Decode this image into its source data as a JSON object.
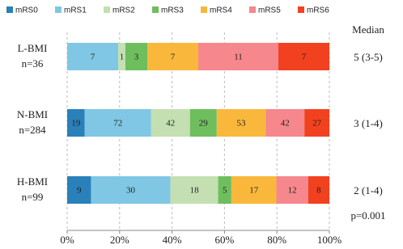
{
  "chart_data": {
    "type": "stacked_percent_barh",
    "categories": [
      "L-BMI",
      "N-BMI",
      "H-BMI"
    ],
    "category_sublabels": [
      "n=36",
      "n=284",
      "n=99"
    ],
    "series": [
      {
        "name": "mRS0",
        "color": "#2a80b9",
        "values": [
          0,
          19,
          9
        ]
      },
      {
        "name": "mRS1",
        "color": "#7fc7e4",
        "values": [
          7,
          72,
          30
        ]
      },
      {
        "name": "mRS2",
        "color": "#c4e0b2",
        "values": [
          1,
          42,
          18
        ]
      },
      {
        "name": "mRS3",
        "color": "#6fbe5e",
        "values": [
          3,
          29,
          5
        ]
      },
      {
        "name": "mRS4",
        "color": "#f9b83c",
        "values": [
          7,
          53,
          17
        ]
      },
      {
        "name": "mRS5",
        "color": "#f5878d",
        "values": [
          11,
          42,
          12
        ]
      },
      {
        "name": "mRS6",
        "color": "#f2411f",
        "values": [
          7,
          27,
          8
        ]
      }
    ],
    "xlim": [
      0,
      100
    ],
    "xticks": [
      {
        "value": 0,
        "label": "0%"
      },
      {
        "value": 20,
        "label": "20%"
      },
      {
        "value": 40,
        "label": "40%"
      },
      {
        "value": 60,
        "label": "60%"
      },
      {
        "value": 80,
        "label": "80%"
      },
      {
        "value": 100,
        "label": "100%"
      }
    ],
    "grid": true,
    "median_header": "Median",
    "medians": [
      "5 (3-5)",
      "3 (1-4)",
      "2 (1-4)"
    ],
    "p_value": "p=0.001"
  }
}
